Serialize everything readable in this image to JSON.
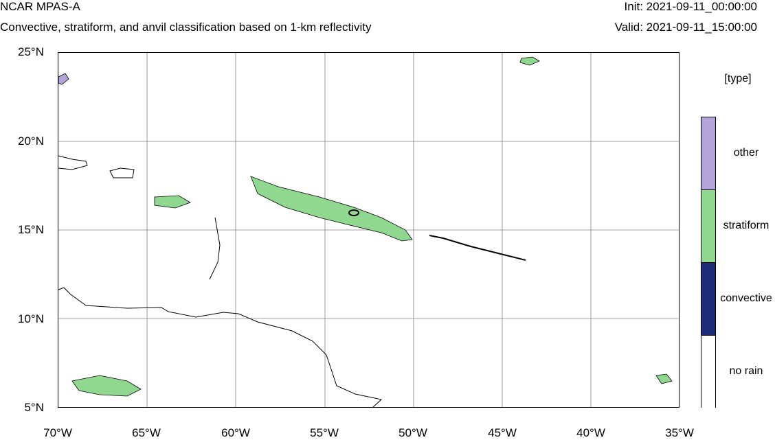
{
  "header": {
    "title": "NCAR MPAS-A",
    "subtitle": "Convective, stratiform, and anvil classification based on 1-km reflectivity",
    "init": "Init: 2021-09-11_00:00:00",
    "valid": "Valid: 2021-09-11_15:00:00"
  },
  "axes": {
    "y_ticks": [
      "25°N",
      "20°N",
      "15°N",
      "10°N",
      "5°N"
    ],
    "x_ticks": [
      "70°W",
      "65°W",
      "60°W",
      "55°W",
      "50°W",
      "45°W",
      "40°W",
      "35°W"
    ],
    "lon_range": [
      -70,
      -35
    ],
    "lat_range": [
      5,
      25
    ],
    "grid": true
  },
  "legend": {
    "title": "[type]",
    "items": [
      {
        "label": "other",
        "color": "#b4a4dc"
      },
      {
        "label": "stratiform",
        "color": "#90d890"
      },
      {
        "label": "convective",
        "color": "#1c2a78"
      },
      {
        "label": "no rain",
        "color": "#ffffff"
      }
    ]
  },
  "colors": {
    "stratiform": "#90d890",
    "other": "#b4a4dc",
    "convective": "#1c2a78",
    "coastline": "#000000",
    "grid": "#808080"
  }
}
